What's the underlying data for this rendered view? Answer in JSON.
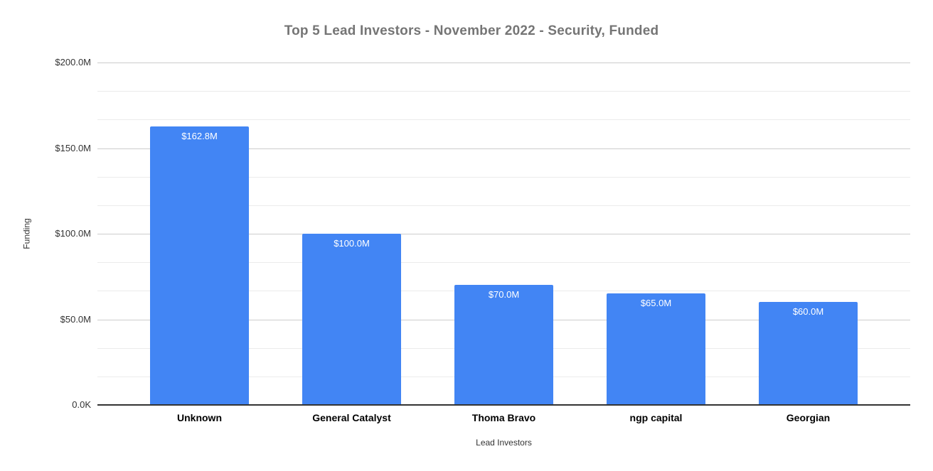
{
  "chart_data": {
    "type": "bar",
    "title": "Top 5 Lead Investors - November 2022 - Security, Funded",
    "xlabel": "Lead Investors",
    "ylabel": "Funding",
    "categories": [
      "Unknown",
      "General Catalyst",
      "Thoma Bravo",
      "ngp capital",
      "Georgian"
    ],
    "values": [
      162.8,
      100.0,
      70.0,
      65.0,
      60.0
    ],
    "bar_labels": [
      "$162.8M",
      "$100.0M",
      "$70.0M",
      "$65.0M",
      "$60.0M"
    ],
    "y_ticks": [
      {
        "label": "$200.0M",
        "value": 200
      },
      {
        "label": "$150.0M",
        "value": 150
      },
      {
        "label": "$100.0M",
        "value": 100
      },
      {
        "label": "$50.0M",
        "value": 50
      },
      {
        "label": "0.0K",
        "value": 0
      }
    ],
    "ylim": [
      0,
      200
    ],
    "grid": {
      "major": true,
      "minor": true,
      "minors_between_majors": 2
    },
    "legend": "none",
    "colors": {
      "bar": "#4285f4",
      "bar_label_text": "#ffffff",
      "major_gridline": "#cccccc",
      "minor_gridline": "#ebebeb",
      "baseline": "#333333",
      "title_text": "#757575",
      "tick_text": "#333333",
      "category_text": "#000000",
      "axis_title_text": "#333333",
      "background": "#ffffff"
    }
  }
}
